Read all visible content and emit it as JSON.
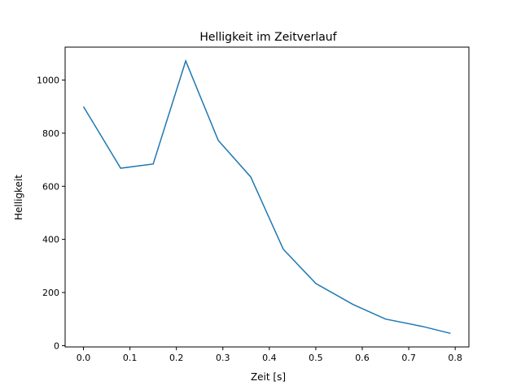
{
  "chart_data": {
    "type": "line",
    "title": "Helligkeit im Zeitverlauf",
    "xlabel": "Zeit [s]",
    "ylabel": "Helligkeit",
    "xlim": [
      -0.0395,
      0.8295
    ],
    "ylim": [
      -5,
      1124
    ],
    "xticks": [
      0.0,
      0.1,
      0.2,
      0.3,
      0.4,
      0.5,
      0.6,
      0.7,
      0.8
    ],
    "xtick_labels": [
      "0.0",
      "0.1",
      "0.2",
      "0.3",
      "0.4",
      "0.5",
      "0.6",
      "0.7",
      "0.8"
    ],
    "yticks": [
      0,
      200,
      400,
      600,
      800,
      1000
    ],
    "ytick_labels": [
      "0",
      "200",
      "400",
      "600",
      "800",
      "1000"
    ],
    "grid": false,
    "series": [
      {
        "name": "Helligkeit",
        "color": "#1f77b4",
        "x": [
          0.0,
          0.08,
          0.15,
          0.22,
          0.29,
          0.36,
          0.43,
          0.5,
          0.58,
          0.65,
          0.73,
          0.79
        ],
        "y": [
          900,
          668,
          684,
          1072,
          773,
          635,
          363,
          234,
          155,
          100,
          72,
          46
        ]
      }
    ]
  }
}
